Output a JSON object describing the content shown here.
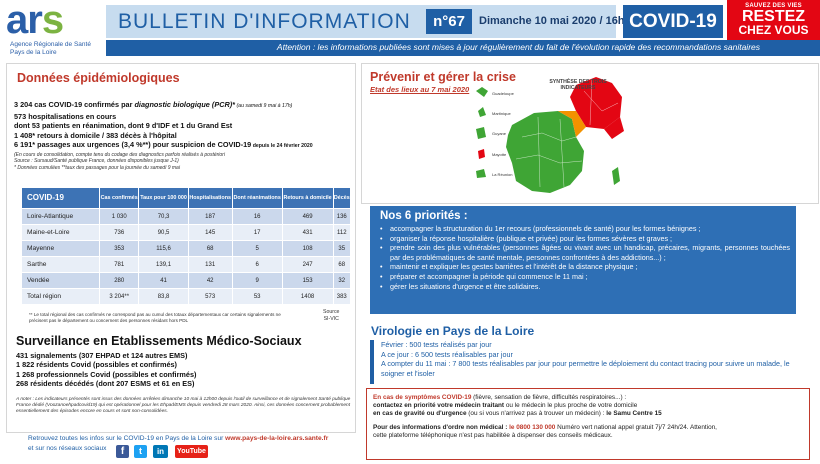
{
  "logo": {
    "word_main": "ar",
    "word_s": "s",
    "sub1": "Agence Régionale de Santé",
    "sub2": "Pays de la Loire"
  },
  "header": {
    "title": "BULLETIN D'INFORMATION",
    "number": "n°67",
    "date": "Dimanche 10 mai 2020 / 16h",
    "covid": "COVID-19",
    "stay_small": "SAUVEZ DES VIES",
    "stay_big1": "RESTEZ",
    "stay_big2": "CHEZ VOUS",
    "notice": "Attention : les informations publiées sont mises à jour régulièrement du fait de l'évolution rapide des recommandations sanitaires"
  },
  "epidemio": {
    "title": "Données épidémiologiques",
    "line1_main": "3 204 cas COVID-19 confirmés par ",
    "line1_italic": "diagnostic biologique (PCR)*",
    "line1_small": " (au samedi 9 mai à 17h)",
    "line2": "573 hospitalisations en cours",
    "line3": "dont 53 patients en réanimation, dont 9 d'IDF et 1 du Grand Est",
    "line4": "1 408* retours à domicile / 383  décès à l'hôpital",
    "line5_main": "6 191* passages aux urgences (3,4 %**) pour suspicion de COVID-19",
    "line5_small": " depuis le 24 février 2020",
    "note1": "(En cours de consolidation, compte tenu du codage des diagnostics parfois réalisés à postériori",
    "note2": "Source : Sursaud/Santé publique France, données disponibles jusque J-1)",
    "note3": "* Données cumulées   **taux des passages pour la journée du samedi 9 mai"
  },
  "table": {
    "headers": [
      "COVID-19",
      "Cas confirmés",
      "Taux pour 100 000",
      "Hospitalisations",
      "Dont réanimations",
      "Retours à domicile",
      "Décès"
    ],
    "rows": [
      [
        "Loire-Atlantique",
        "1 030",
        "70,3",
        "187",
        "16",
        "469",
        "136"
      ],
      [
        "Maine-et-Loire",
        "736",
        "90,5",
        "145",
        "17",
        "431",
        "112"
      ],
      [
        "Mayenne",
        "353",
        "115,6",
        "68",
        "5",
        "108",
        "35"
      ],
      [
        "Sarthe",
        "781",
        "139,1",
        "131",
        "6",
        "247",
        "68"
      ],
      [
        "Vendée",
        "280",
        "41",
        "42",
        "9",
        "153",
        "32"
      ],
      [
        "Total région",
        "3 204**",
        "83,8",
        "573",
        "53",
        "1408",
        "383"
      ]
    ],
    "note": "** Le total régional des cas confirmés ne correspond pas au cumul des totaux départementaux car certains signalements ne précisent pas le département ou concernent des personnes résidant hors PDL",
    "source1": "Source",
    "source2": "SI-VIC"
  },
  "surveillance": {
    "title": "Surveillance en Etablissements Médico-Sociaux",
    "lines": [
      "431  signalements (307 EHPAD et 124 autres EMS)",
      "1 822 résidents Covid (possibles et confirmés)",
      "1 268 professionnels Covid (possibles et confirmés)",
      "268 résidents décédés  (dont 207 ESMS et 61 en ES)"
    ],
    "note": "A noter : Les indicateurs présentés sont issus des données arrêtées dimanche 10 mai à 12h00 depuis l'outil de surveillance et de signalement Santé publique France dédié (Voozanoehpadcovid19) qui est opérationnel pour les Ehpad/EMS depuis vendredi 28 mars 2020. Ainsi, ces données concernent probablement essentiellement des épisodes encore en cours et sont non-consolidées."
  },
  "footer": {
    "line1_pre": "Retrouvez toutes les infos sur le COVID-19 en Pays de la Loire sur ",
    "line1_link": "www.pays-de-la-loire.ars.sante.fr",
    "line2": "et sur nos réseaux sociaux",
    "facebook": "f",
    "twitter": "t",
    "linkedin": "in",
    "youtube": "YouTube"
  },
  "prevention": {
    "title": "Prévenir et gérer la crise",
    "date_link": "Etat des lieux au 7 mai 2020",
    "map_title": "SYNTHÈSE DES TROIS INDICATEURS",
    "territories": [
      "Guadeloupe",
      "Martinique",
      "Guyane",
      "Mayotte",
      "La Réunion"
    ],
    "colors": {
      "green": "#3fa535",
      "red": "#e30613",
      "orange": "#f39200"
    }
  },
  "priorities": {
    "title": "Nos 6 priorités :",
    "items": [
      "accompagner la structuration du 1er recours (professionnels de santé) pour les formes bénignes ;",
      "organiser la réponse hospitalière (publique et privée) pour les formes sévères et graves ;",
      "prendre soin des plus vulnérables (personnes âgées ou vivant avec un handicap, précaires, migrants, personnes touchées par des problématiques de santé mentale, personnes confrontées à des addictions...) ;",
      "maintenir et expliquer les gestes barrières et l'intérêt de la distance physique ;",
      "préparer et accompagner la période qui commence le 11 mai ;",
      "gérer les situations d'urgence et être solidaires."
    ]
  },
  "virology": {
    "title": "Virologie en Pays de la Loire",
    "lines": [
      "Février : 500 tests réalisés par jour",
      "A ce jour : 6 500 tests réalisables par jour",
      "A compter du 11 mai : 7 800 tests réalisables par jour pour permettre le déploiement du contact tracing pour suivre un malade, le soigner et l'isoler"
    ]
  },
  "urgent": {
    "line1_red": "En cas de symptômes COVID-19",
    "line1_rest": " (fièvre, sensation de fièvre, difficultés respiratoires...) :",
    "line2_bold": "contactez en priorité votre médecin traitant",
    "line2_rest": " ou le médecin le plus proche de votre domicile",
    "line3_bold1": "en cas de gravité ou d'urgence",
    "line3_mid": " (ou si vous n'arrivez pas à trouver un médecin) : ",
    "line3_bold2": "le Samu Centre 15",
    "line4_bold": "Pour des informations d'ordre non médical : ",
    "line4_red": "le 0800 130 000",
    "line4_rest": " Numéro vert national appel gratuit 7j/7 24h/24. Attention,",
    "line5": "cette plateforme téléphonique n'est pas habilitée à dispenser des conseils médicaux."
  }
}
